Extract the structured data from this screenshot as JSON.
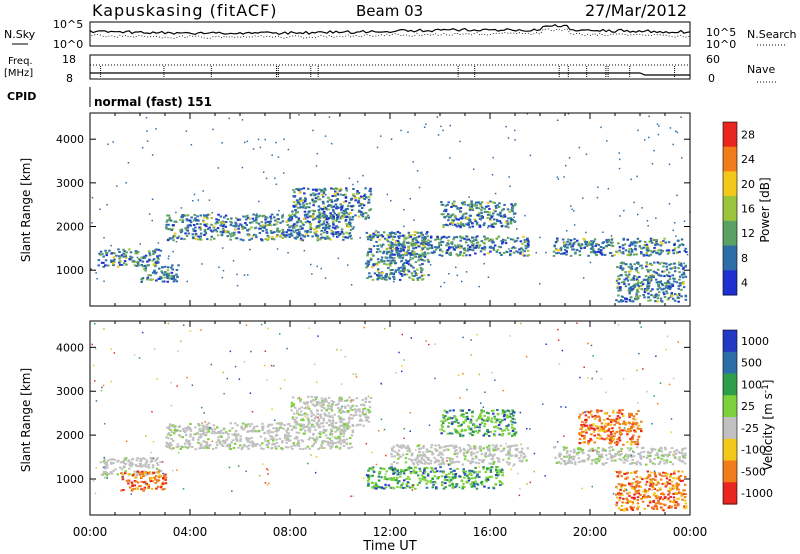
{
  "header": {
    "station": "Kapuskasing (fitACF)",
    "beam": "Beam 03",
    "date": "27/Mar/2012"
  },
  "noise_panel": {
    "left_label": "N.Sky",
    "right_label": "N.Search",
    "left_ticks": [
      "10^5",
      "10^0"
    ],
    "right_ticks": [
      "10^5",
      "10^0"
    ]
  },
  "freq_panel": {
    "left_label_line1": "Freq.",
    "left_label_line2": "[MHz]",
    "right_label": "Nave",
    "left_ticks": [
      "18",
      "8"
    ],
    "right_ticks": [
      "60",
      "0"
    ]
  },
  "cpid_panel": {
    "label": "CPID",
    "text": "normal (fast) 151"
  },
  "x_axis": {
    "label": "Time UT",
    "ticks": [
      "00:00",
      "04:00",
      "08:00",
      "12:00",
      "16:00",
      "20:00",
      "00:00"
    ]
  },
  "chart_data": [
    {
      "type": "heatmap",
      "title": "",
      "xlabel": "Time UT",
      "ylabel": "Slant Range [km]",
      "xlim": [
        0,
        24
      ],
      "ylim": [
        180,
        4600
      ],
      "yticks": [
        "1000",
        "2000",
        "3000",
        "4000"
      ],
      "colorbar": {
        "label": "Power [dB]",
        "ticks": [
          "28",
          "24",
          "20",
          "16",
          "12",
          "8",
          "4"
        ],
        "colors": [
          "#e8251f",
          "#f07c1a",
          "#f2c91a",
          "#9bc43c",
          "#5aa164",
          "#2e6ea8",
          "#1f2fd0"
        ]
      },
      "echo_bands": [
        {
          "t0": 0.3,
          "t1": 2.8,
          "r0": 1100,
          "r1": 1500
        },
        {
          "t0": 2.0,
          "t1": 3.5,
          "r0": 750,
          "r1": 1150
        },
        {
          "t0": 3.0,
          "t1": 10.5,
          "r0": 1700,
          "r1": 2300
        },
        {
          "t0": 8.0,
          "t1": 11.2,
          "r0": 2200,
          "r1": 2900
        },
        {
          "t0": 11.0,
          "t1": 13.5,
          "r0": 800,
          "r1": 1900
        },
        {
          "t0": 12.0,
          "t1": 17.5,
          "r0": 1350,
          "r1": 1800
        },
        {
          "t0": 14.0,
          "t1": 17.0,
          "r0": 2000,
          "r1": 2600
        },
        {
          "t0": 18.5,
          "t1": 23.8,
          "r0": 1350,
          "r1": 1750
        },
        {
          "t0": 21.0,
          "t1": 23.8,
          "r0": 300,
          "r1": 1200
        }
      ]
    },
    {
      "type": "heatmap",
      "title": "",
      "xlabel": "Time UT",
      "ylabel": "Slant Range [km]",
      "xlim": [
        0,
        24
      ],
      "ylim": [
        180,
        4600
      ],
      "yticks": [
        "1000",
        "2000",
        "3000",
        "4000"
      ],
      "colorbar": {
        "label": "Velocity [m s^-1]",
        "ticks": [
          "1000",
          "500",
          "100",
          "25",
          "-25",
          "-100",
          "-500",
          "-1000"
        ],
        "colors": [
          "#2338c2",
          "#2e6ea8",
          "#2e9e4a",
          "#7bd23a",
          "#c0c0c0",
          "#f2c91a",
          "#f07c1a",
          "#e8251f"
        ]
      },
      "echo_bands": [
        {
          "t0": 0.3,
          "t1": 2.8,
          "r0": 1100,
          "r1": 1500,
          "class": "ground"
        },
        {
          "t0": 1.2,
          "t1": 3.0,
          "r0": 750,
          "r1": 1200,
          "class": "neg"
        },
        {
          "t0": 3.0,
          "t1": 10.5,
          "r0": 1700,
          "r1": 2300,
          "class": "ground"
        },
        {
          "t0": 8.0,
          "t1": 11.2,
          "r0": 2200,
          "r1": 2900,
          "class": "ground"
        },
        {
          "t0": 11.0,
          "t1": 16.5,
          "r0": 800,
          "r1": 1300,
          "class": "pos"
        },
        {
          "t0": 12.0,
          "t1": 17.5,
          "r0": 1350,
          "r1": 1800,
          "class": "ground"
        },
        {
          "t0": 14.0,
          "t1": 17.0,
          "r0": 2000,
          "r1": 2600,
          "class": "pos"
        },
        {
          "t0": 18.5,
          "t1": 23.8,
          "r0": 1350,
          "r1": 1750,
          "class": "ground"
        },
        {
          "t0": 19.5,
          "t1": 22.0,
          "r0": 1800,
          "r1": 2600,
          "class": "neg"
        },
        {
          "t0": 21.0,
          "t1": 23.8,
          "r0": 300,
          "r1": 1200,
          "class": "neg"
        }
      ]
    }
  ]
}
